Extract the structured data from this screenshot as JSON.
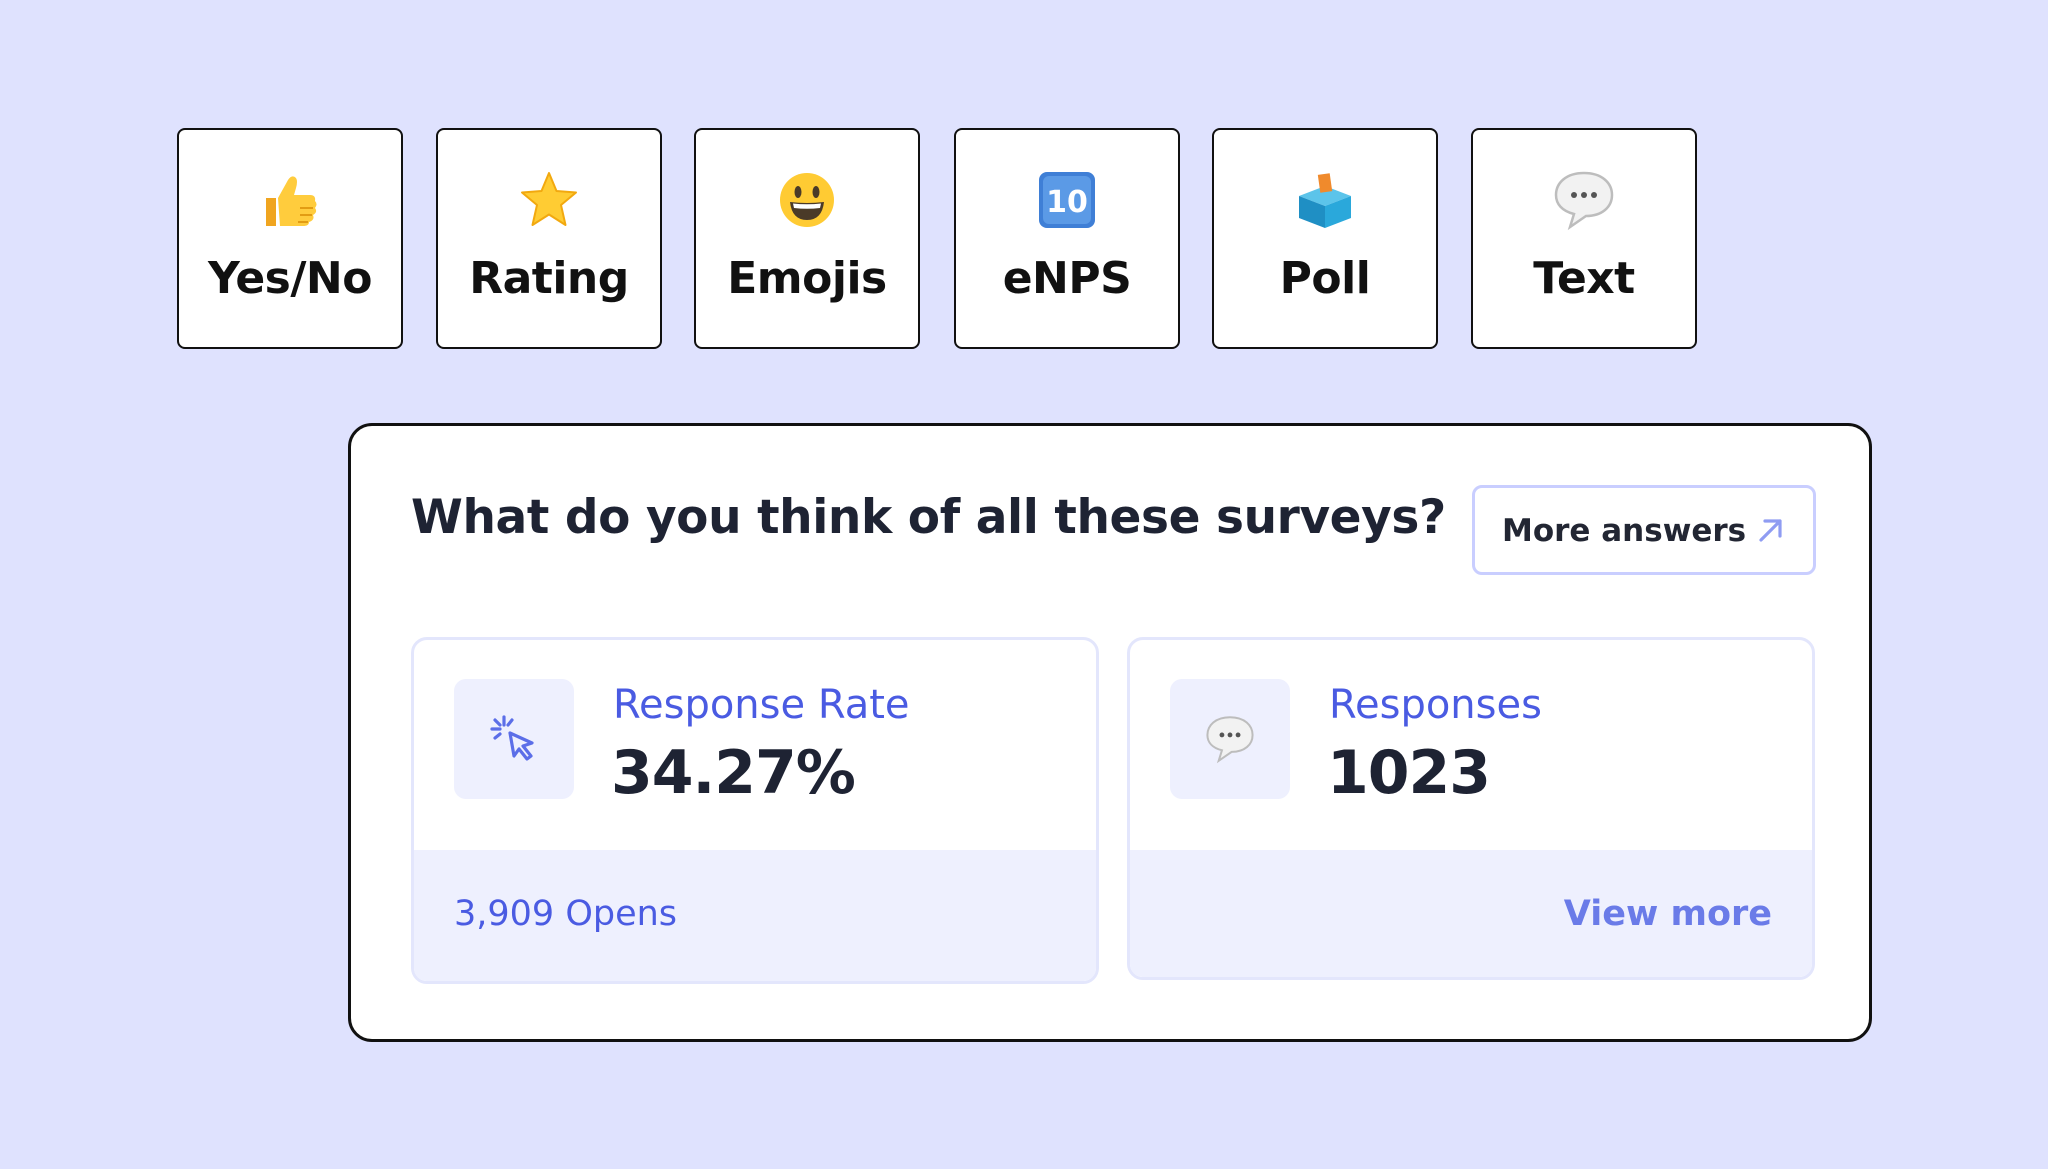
{
  "survey_types": [
    {
      "label": "Yes/No",
      "icon": "thumbs-up-icon"
    },
    {
      "label": "Rating",
      "icon": "star-icon"
    },
    {
      "label": "Emojis",
      "icon": "smiley-face-icon"
    },
    {
      "label": "eNPS",
      "icon": "keycap-ten-icon",
      "icon_text": "10"
    },
    {
      "label": "Poll",
      "icon": "ballot-box-icon"
    },
    {
      "label": "Text",
      "icon": "speech-bubble-icon"
    }
  ],
  "card": {
    "question": "What do you think of all these surveys?",
    "more_answers_label": "More answers",
    "response_rate": {
      "label": "Response Rate",
      "value": "34.27%",
      "footer": "3,909 Opens",
      "icon": "cursor-click-icon"
    },
    "responses": {
      "label": "Responses",
      "value": "1023",
      "footer": "View more",
      "icon": "speech-bubble-icon"
    }
  },
  "colors": {
    "background": "#dfe2fe",
    "accent": "#4a5be2",
    "text_dark": "#1e2333",
    "tile_border": "#111111"
  }
}
